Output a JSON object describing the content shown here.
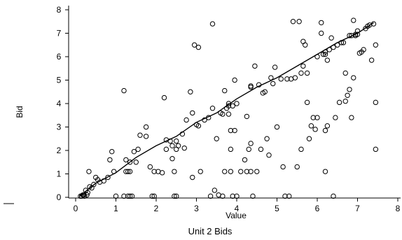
{
  "chart_data": {
    "type": "scatter",
    "title": "Unit 2 Bids",
    "xlabel": "Value",
    "ylabel": "Bid",
    "xlim": [
      0,
      8
    ],
    "ylim": [
      0,
      8
    ],
    "xticks": [
      "0",
      "1",
      "2",
      "3",
      "4",
      "5",
      "6",
      "7",
      "8"
    ],
    "yticks": [
      "0",
      "1",
      "2",
      "3",
      "4",
      "5",
      "6",
      "7",
      "8"
    ],
    "grid": false,
    "trend_line": [
      [
        0.1,
        0.05
      ],
      [
        0.5,
        0.6
      ],
      [
        1.0,
        1.05
      ],
      [
        1.5,
        1.7
      ],
      [
        2.0,
        2.2
      ],
      [
        2.5,
        2.6
      ],
      [
        3.0,
        3.2
      ],
      [
        3.5,
        3.6
      ],
      [
        4.0,
        4.2
      ],
      [
        4.5,
        4.7
      ],
      [
        5.0,
        5.1
      ],
      [
        5.5,
        5.6
      ],
      [
        6.0,
        6.1
      ],
      [
        6.5,
        6.6
      ],
      [
        7.0,
        7.0
      ],
      [
        7.4,
        7.45
      ]
    ],
    "points": [
      [
        0.12,
        0.05
      ],
      [
        0.15,
        0.05
      ],
      [
        0.18,
        0.1
      ],
      [
        0.2,
        0.1
      ],
      [
        0.22,
        0.05
      ],
      [
        0.25,
        0.3
      ],
      [
        0.28,
        0.1
      ],
      [
        0.3,
        0.2
      ],
      [
        0.33,
        1.1
      ],
      [
        0.35,
        0.45
      ],
      [
        0.4,
        0.4
      ],
      [
        0.45,
        0.55
      ],
      [
        0.5,
        0.85
      ],
      [
        0.55,
        0.75
      ],
      [
        0.6,
        0.65
      ],
      [
        0.7,
        0.7
      ],
      [
        0.8,
        0.85
      ],
      [
        0.85,
        1.6
      ],
      [
        0.9,
        1.95
      ],
      [
        0.95,
        1.1
      ],
      [
        1.0,
        0.05
      ],
      [
        1.2,
        4.55
      ],
      [
        1.2,
        0.05
      ],
      [
        1.25,
        1.1
      ],
      [
        1.25,
        1.6
      ],
      [
        1.3,
        1.1
      ],
      [
        1.3,
        0.05
      ],
      [
        1.35,
        1.1
      ],
      [
        1.35,
        0.05
      ],
      [
        1.4,
        0.05
      ],
      [
        1.35,
        1.5
      ],
      [
        1.45,
        1.95
      ],
      [
        1.5,
        1.5
      ],
      [
        1.55,
        2.05
      ],
      [
        1.6,
        2.65
      ],
      [
        1.75,
        3.0
      ],
      [
        1.75,
        2.6
      ],
      [
        1.85,
        1.3
      ],
      [
        1.9,
        0.05
      ],
      [
        1.95,
        0.05
      ],
      [
        1.95,
        1.1
      ],
      [
        2.05,
        1.1
      ],
      [
        2.15,
        1.05
      ],
      [
        2.2,
        4.25
      ],
      [
        2.25,
        2.05
      ],
      [
        2.25,
        2.45
      ],
      [
        2.35,
        2.4
      ],
      [
        2.4,
        2.2
      ],
      [
        2.4,
        1.65
      ],
      [
        2.45,
        1.1
      ],
      [
        2.45,
        0.05
      ],
      [
        2.5,
        0.05
      ],
      [
        2.5,
        2.05
      ],
      [
        2.5,
        2.4
      ],
      [
        2.55,
        2.2
      ],
      [
        2.65,
        2.7
      ],
      [
        2.7,
        2.1
      ],
      [
        2.75,
        3.3
      ],
      [
        2.85,
        4.5
      ],
      [
        2.9,
        3.6
      ],
      [
        2.9,
        0.85
      ],
      [
        2.95,
        6.5
      ],
      [
        3.0,
        3.1
      ],
      [
        3.05,
        3.05
      ],
      [
        3.05,
        6.4
      ],
      [
        3.1,
        1.1
      ],
      [
        3.2,
        3.3
      ],
      [
        3.3,
        3.4
      ],
      [
        3.35,
        0.05
      ],
      [
        3.4,
        7.4
      ],
      [
        3.4,
        3.8
      ],
      [
        3.45,
        0.3
      ],
      [
        3.5,
        2.5
      ],
      [
        3.55,
        0.1
      ],
      [
        3.6,
        3.6
      ],
      [
        3.65,
        0.05
      ],
      [
        3.65,
        3.55
      ],
      [
        3.7,
        4.55
      ],
      [
        3.7,
        1.1
      ],
      [
        3.75,
        3.8
      ],
      [
        3.8,
        4.0
      ],
      [
        3.8,
        3.9
      ],
      [
        3.8,
        3.55
      ],
      [
        3.85,
        2.85
      ],
      [
        3.85,
        2.05
      ],
      [
        3.85,
        1.1
      ],
      [
        3.9,
        3.9
      ],
      [
        3.9,
        0.05
      ],
      [
        3.95,
        5.0
      ],
      [
        3.95,
        2.85
      ],
      [
        4.0,
        4.0
      ],
      [
        4.0,
        0.05
      ],
      [
        4.1,
        1.1
      ],
      [
        4.2,
        1.6
      ],
      [
        4.25,
        3.45
      ],
      [
        4.25,
        1.1
      ],
      [
        4.3,
        2.05
      ],
      [
        4.35,
        2.3
      ],
      [
        4.35,
        1.1
      ],
      [
        4.35,
        4.7
      ],
      [
        4.35,
        4.75
      ],
      [
        4.4,
        0.05
      ],
      [
        4.45,
        5.6
      ],
      [
        4.5,
        1.1
      ],
      [
        4.55,
        4.8
      ],
      [
        4.6,
        2.05
      ],
      [
        4.65,
        4.45
      ],
      [
        4.7,
        4.5
      ],
      [
        4.75,
        2.5
      ],
      [
        4.8,
        1.8
      ],
      [
        4.85,
        5.1
      ],
      [
        4.9,
        4.85
      ],
      [
        4.95,
        5.55
      ],
      [
        5.0,
        3.0
      ],
      [
        5.1,
        5.05
      ],
      [
        5.15,
        1.3
      ],
      [
        5.2,
        0.05
      ],
      [
        5.25,
        5.05
      ],
      [
        5.3,
        0.05
      ],
      [
        5.35,
        5.05
      ],
      [
        5.4,
        7.5
      ],
      [
        5.45,
        5.1
      ],
      [
        5.5,
        1.3
      ],
      [
        5.55,
        7.5
      ],
      [
        5.6,
        2.05
      ],
      [
        5.6,
        5.3
      ],
      [
        5.65,
        6.65
      ],
      [
        5.65,
        5.6
      ],
      [
        5.7,
        6.5
      ],
      [
        5.75,
        5.3
      ],
      [
        5.8,
        2.5
      ],
      [
        5.85,
        3.05
      ],
      [
        5.9,
        3.4
      ],
      [
        5.95,
        2.9
      ],
      [
        6.0,
        3.4
      ],
      [
        6.0,
        6.0
      ],
      [
        6.1,
        7.45
      ],
      [
        6.1,
        7.0
      ],
      [
        6.15,
        6.1
      ],
      [
        6.2,
        6.2
      ],
      [
        6.2,
        6.1
      ],
      [
        6.2,
        2.85
      ],
      [
        6.2,
        1.1
      ],
      [
        6.25,
        3.05
      ],
      [
        6.25,
        5.85
      ],
      [
        6.3,
        6.3
      ],
      [
        6.35,
        6.8
      ],
      [
        6.4,
        6.4
      ],
      [
        6.4,
        0.05
      ],
      [
        6.45,
        3.4
      ],
      [
        6.5,
        6.5
      ],
      [
        6.55,
        4.05
      ],
      [
        6.6,
        6.6
      ],
      [
        6.65,
        6.6
      ],
      [
        6.7,
        4.1
      ],
      [
        6.75,
        4.35
      ],
      [
        6.8,
        4.6
      ],
      [
        6.8,
        6.9
      ],
      [
        6.85,
        6.9
      ],
      [
        6.9,
        7.55
      ],
      [
        6.95,
        6.9
      ],
      [
        6.95,
        6.95
      ],
      [
        7.0,
        7.1
      ],
      [
        7.05,
        6.15
      ],
      [
        7.1,
        6.2
      ],
      [
        7.15,
        6.3
      ],
      [
        7.2,
        7.2
      ],
      [
        7.25,
        7.3
      ],
      [
        7.3,
        7.35
      ],
      [
        7.35,
        5.85
      ],
      [
        7.4,
        7.4
      ],
      [
        7.45,
        4.05
      ],
      [
        7.45,
        2.05
      ],
      [
        7.45,
        6.5
      ],
      [
        7.0,
        6.95
      ],
      [
        6.7,
        5.3
      ],
      [
        6.9,
        5.1
      ],
      [
        5.75,
        4.05
      ],
      [
        6.85,
        3.4
      ]
    ]
  }
}
